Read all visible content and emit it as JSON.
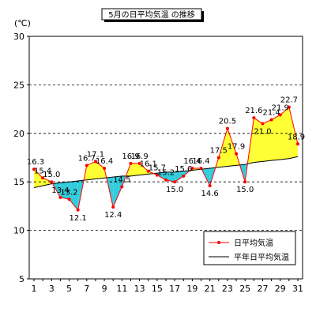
{
  "chart_data": {
    "type": "line",
    "title": "5月の日平均気温 の推移",
    "ylabel": "(℃)",
    "xlabel": "",
    "ylim": [
      5,
      30
    ],
    "yticks": [
      5,
      10,
      15,
      20,
      25,
      30
    ],
    "xticks": [
      1,
      3,
      5,
      7,
      9,
      11,
      13,
      15,
      17,
      19,
      21,
      23,
      25,
      27,
      29,
      31
    ],
    "grid": "horizontal-dashed",
    "legend_position": "bottom-right",
    "x": [
      1,
      2,
      3,
      4,
      5,
      6,
      7,
      8,
      9,
      10,
      11,
      12,
      13,
      14,
      15,
      16,
      17,
      18,
      19,
      20,
      21,
      22,
      23,
      24,
      25,
      26,
      27,
      28,
      29,
      30,
      31
    ],
    "series": [
      {
        "name": "日平均気温",
        "color": "#ff0000",
        "values": [
          16.3,
          15.4,
          15.0,
          13.4,
          13.2,
          12.1,
          16.7,
          17.1,
          16.4,
          12.4,
          14.5,
          16.9,
          16.9,
          16.1,
          15.7,
          15.2,
          15.0,
          15.6,
          16.4,
          16.4,
          14.6,
          17.5,
          20.5,
          17.9,
          15.0,
          21.6,
          21.0,
          21.4,
          21.9,
          22.7,
          18.9
        ],
        "labels": [
          "16.3",
          "15.4",
          "15.0",
          "13.4",
          "13.2",
          "12.1",
          "16.7",
          "17.1",
          "16.4",
          "12.4",
          "14.5",
          "16.9",
          "16.9",
          "16.1",
          "15.7",
          "15.2",
          "15.0",
          "15.6",
          "16.4",
          "16.4",
          "14.6",
          "17.5",
          "20.5",
          "17.9",
          "15.0",
          "21.6",
          "21.0",
          "21.4",
          "21.9",
          "22.7",
          "18.9"
        ]
      },
      {
        "name": "平年日平均気温",
        "color": "#000000",
        "values": [
          14.4,
          14.6,
          14.8,
          14.9,
          15.0,
          15.1,
          15.2,
          15.3,
          15.4,
          15.5,
          15.6,
          15.6,
          15.7,
          15.8,
          15.9,
          16.0,
          16.0,
          16.1,
          16.2,
          16.3,
          16.4,
          16.5,
          16.6,
          16.7,
          16.8,
          17.0,
          17.1,
          17.2,
          17.3,
          17.4,
          17.6
        ]
      }
    ],
    "fill_colors": {
      "above_normal": "#ffff33",
      "below_normal": "#33ccdd"
    }
  }
}
